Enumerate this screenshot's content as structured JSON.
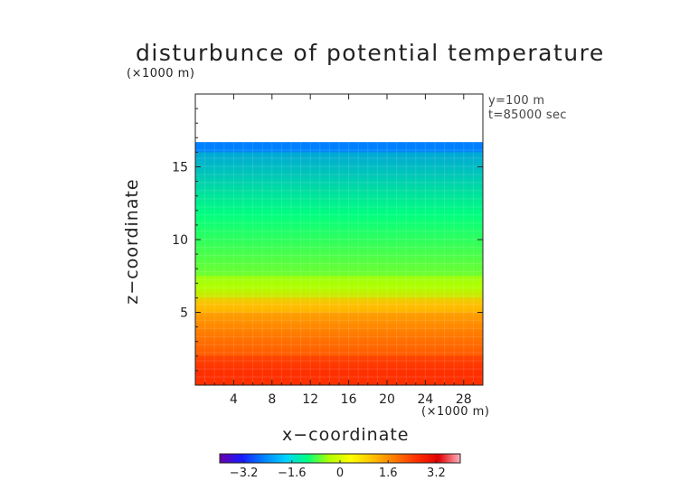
{
  "chart_data": {
    "type": "heatmap",
    "title": "disturbunce of potential temperature",
    "z_scale_note": "(×1000 m)",
    "x_scale_note": "(×1000 m)",
    "annotations": [
      "y=100 m",
      "t=85000 sec"
    ],
    "xlabel": "x−coordinate",
    "ylabel": "z−coordinate",
    "xlim": [
      0,
      30
    ],
    "ylim": [
      0,
      20
    ],
    "x_ticks": [
      4,
      8,
      12,
      16,
      20,
      24,
      28
    ],
    "y_ticks": [
      5,
      10,
      15
    ],
    "colorbar": {
      "range": [
        -4,
        4
      ],
      "ticks": [
        -3.2,
        -1.6,
        0,
        1.6,
        3.2
      ],
      "tick_labels": [
        "−3.2",
        "−1.6",
        "0",
        "1.6",
        "3.2"
      ],
      "colormap": [
        "#6a00a8",
        "#1a1aff",
        "#0080ff",
        "#00d0ff",
        "#00ff80",
        "#b0ff00",
        "#ffff00",
        "#ffc000",
        "#ff7a00",
        "#ff3000",
        "#e00000",
        "#ffb0c0"
      ]
    },
    "field_top_height": 16.7,
    "layers": [
      {
        "z_range": [
          16.0,
          16.7
        ],
        "value": -2.8
      },
      {
        "z_range": [
          7.5,
          16.0
        ],
        "value": -1.3
      },
      {
        "z_range": [
          6.0,
          7.5
        ],
        "value": -0.4
      },
      {
        "z_range": [
          5.0,
          6.0
        ],
        "value": 0.8
      },
      {
        "z_range": [
          2.0,
          5.0
        ],
        "value": 1.8
      },
      {
        "z_range": [
          0.0,
          2.0
        ],
        "value": 2.4
      }
    ]
  }
}
